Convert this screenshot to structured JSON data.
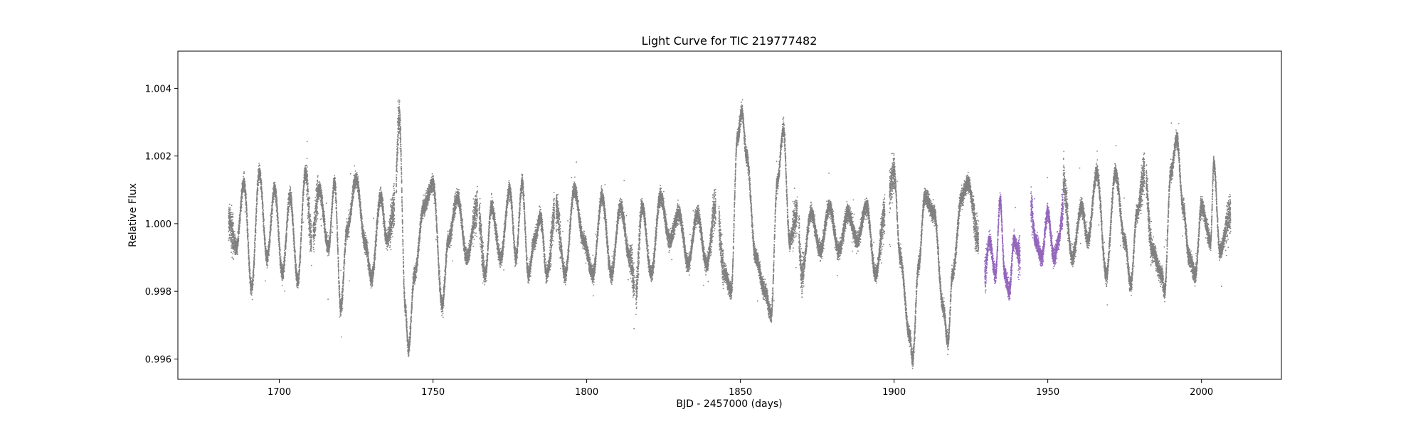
{
  "chart_data": {
    "type": "scatter",
    "title": "Light Curve for TIC 219777482",
    "xlabel": "BJD - 2457000 (days)",
    "ylabel": "Relative Flux",
    "xlim": [
      1667,
      2026
    ],
    "ylim": [
      0.9954,
      1.0051
    ],
    "grid": false,
    "legend": "none",
    "xticks": [
      1700,
      1750,
      1800,
      1850,
      1900,
      1950,
      2000
    ],
    "yticks": [
      0.996,
      0.998,
      1.0,
      1.002,
      1.004
    ],
    "xtick_labels": [
      "1700",
      "1750",
      "1800",
      "1850",
      "1900",
      "1950",
      "2000"
    ],
    "ytick_labels": [
      "0.996",
      "0.998",
      "1.000",
      "1.002",
      "1.004"
    ],
    "series": [
      {
        "color": "#808080",
        "segments": [
          [
            1683.5,
            1710.5
          ],
          [
            1711,
            1737.5
          ],
          [
            1738,
            1764.5
          ],
          [
            1765,
            1789.5
          ],
          [
            1790,
            1815.5
          ],
          [
            1816,
            1842
          ],
          [
            1843,
            1868.5
          ],
          [
            1869,
            1897
          ],
          [
            1898.5,
            1927.5
          ],
          [
            1955,
            1981.5
          ],
          [
            1982,
            2009.5
          ]
        ],
        "curve": [
          [
            1683.5,
            1.0001
          ],
          [
            1686,
            0.9993
          ],
          [
            1688.5,
            1.0012
          ],
          [
            1691,
            0.9981
          ],
          [
            1693.5,
            1.0015
          ],
          [
            1696,
            0.999
          ],
          [
            1698.5,
            1.001
          ],
          [
            1701,
            0.9985
          ],
          [
            1703.5,
            1.0008
          ],
          [
            1706,
            0.9983
          ],
          [
            1708.5,
            1.0015
          ],
          [
            1710.5,
            0.9995
          ],
          [
            1713,
            1.001
          ],
          [
            1716,
            0.9993
          ],
          [
            1718,
            1.0012
          ],
          [
            1720,
            0.9975
          ],
          [
            1722,
            0.9998
          ],
          [
            1725,
            1.0013
          ],
          [
            1728,
            0.9994
          ],
          [
            1730,
            0.9984
          ],
          [
            1733,
            1.0008
          ],
          [
            1735,
            0.9995
          ],
          [
            1737.5,
            1.0005
          ],
          [
            1739,
            1.0032
          ],
          [
            1741,
            0.9975
          ],
          [
            1742,
            0.9963
          ],
          [
            1744,
            0.9985
          ],
          [
            1747,
            1.0005
          ],
          [
            1750,
            1.0012
          ],
          [
            1753,
            0.9976
          ],
          [
            1755,
            0.9995
          ],
          [
            1758,
            1.0008
          ],
          [
            1761,
            0.999
          ],
          [
            1764.5,
            1.0005
          ],
          [
            1767,
            0.9985
          ],
          [
            1769,
            1.0005
          ],
          [
            1772,
            0.999
          ],
          [
            1775,
            1.001
          ],
          [
            1777,
            0.999
          ],
          [
            1779,
            1.0012
          ],
          [
            1781,
            0.9985
          ],
          [
            1783,
            0.9995
          ],
          [
            1785,
            1.0002
          ],
          [
            1787,
            0.9985
          ],
          [
            1790,
            1.0005
          ],
          [
            1793,
            0.9985
          ],
          [
            1796,
            1.001
          ],
          [
            1799,
            0.9995
          ],
          [
            1802,
            0.9985
          ],
          [
            1805,
            1.0008
          ],
          [
            1808,
            0.9985
          ],
          [
            1811,
            1.0005
          ],
          [
            1814,
            0.999
          ],
          [
            1816,
            0.998
          ],
          [
            1818,
            1.0005
          ],
          [
            1821,
            0.9985
          ],
          [
            1824,
            1.0008
          ],
          [
            1827,
            0.9995
          ],
          [
            1830,
            1.0003
          ],
          [
            1833,
            0.9988
          ],
          [
            1836,
            1.0003
          ],
          [
            1839,
            0.9988
          ],
          [
            1842,
            1.0005
          ],
          [
            1845,
            0.9985
          ],
          [
            1847,
            0.998
          ],
          [
            1849,
            1.0025
          ],
          [
            1850.5,
            1.0033
          ],
          [
            1852,
            1.002
          ],
          [
            1855,
            0.999
          ],
          [
            1858,
            0.998
          ],
          [
            1860,
            0.9973
          ],
          [
            1862,
            1.0012
          ],
          [
            1864,
            1.0028
          ],
          [
            1866,
            0.9995
          ],
          [
            1868.5,
            1.0003
          ],
          [
            1870,
            0.9985
          ],
          [
            1873,
            1.0003
          ],
          [
            1876,
            0.9992
          ],
          [
            1879,
            1.0005
          ],
          [
            1882,
            0.9992
          ],
          [
            1885,
            1.0003
          ],
          [
            1888,
            0.9995
          ],
          [
            1891,
            1.0005
          ],
          [
            1894,
            0.9985
          ],
          [
            1897,
            1.0003
          ],
          [
            1900,
            1.0015
          ],
          [
            1902,
            0.999
          ],
          [
            1905,
            0.9967
          ],
          [
            1906,
            0.996
          ],
          [
            1908,
            0.9988
          ],
          [
            1910,
            1.0008
          ],
          [
            1913,
            1.0003
          ],
          [
            1916,
            0.9975
          ],
          [
            1917.5,
            0.9965
          ],
          [
            1919,
            0.9985
          ],
          [
            1922,
            1.0008
          ],
          [
            1924,
            1.0012
          ],
          [
            1927.5,
            0.9995
          ],
          [
            1955,
            1.0012
          ],
          [
            1958,
            0.999
          ],
          [
            1961,
            1.0005
          ],
          [
            1963,
            0.9995
          ],
          [
            1966,
            1.0015
          ],
          [
            1969,
            0.9985
          ],
          [
            1972,
            1.0015
          ],
          [
            1975,
            0.9995
          ],
          [
            1977,
            0.9982
          ],
          [
            1979,
            1.0003
          ],
          [
            1981.5,
            1.0015
          ],
          [
            1984,
            0.9992
          ],
          [
            1987,
            0.9985
          ],
          [
            1988,
            0.998
          ],
          [
            1990,
            1.0015
          ],
          [
            1992,
            1.0025
          ],
          [
            1994,
            1.0005
          ],
          [
            1996,
            0.999
          ],
          [
            1998,
            0.9985
          ],
          [
            2000,
            1.0005
          ],
          [
            2003,
            0.9995
          ],
          [
            2004,
            1.0018
          ],
          [
            2006,
            0.9992
          ],
          [
            2009.5,
            1.0003
          ]
        ]
      },
      {
        "color": "#9467bd",
        "segments": [
          [
            1929.5,
            1941
          ],
          [
            1944.5,
            1955
          ]
        ],
        "curve": [
          [
            1929.5,
            0.9985
          ],
          [
            1931,
            0.9995
          ],
          [
            1933,
            0.9985
          ],
          [
            1934.5,
            1.0007
          ],
          [
            1936,
            0.9985
          ],
          [
            1937.5,
            0.998
          ],
          [
            1939,
            0.9995
          ],
          [
            1941,
            0.999
          ],
          [
            1944.5,
            1.0005
          ],
          [
            1946,
            0.9995
          ],
          [
            1948,
            0.999
          ],
          [
            1950,
            1.0003
          ],
          [
            1952,
            0.999
          ],
          [
            1953.5,
            0.9995
          ],
          [
            1955,
            1.0005
          ]
        ]
      }
    ]
  }
}
